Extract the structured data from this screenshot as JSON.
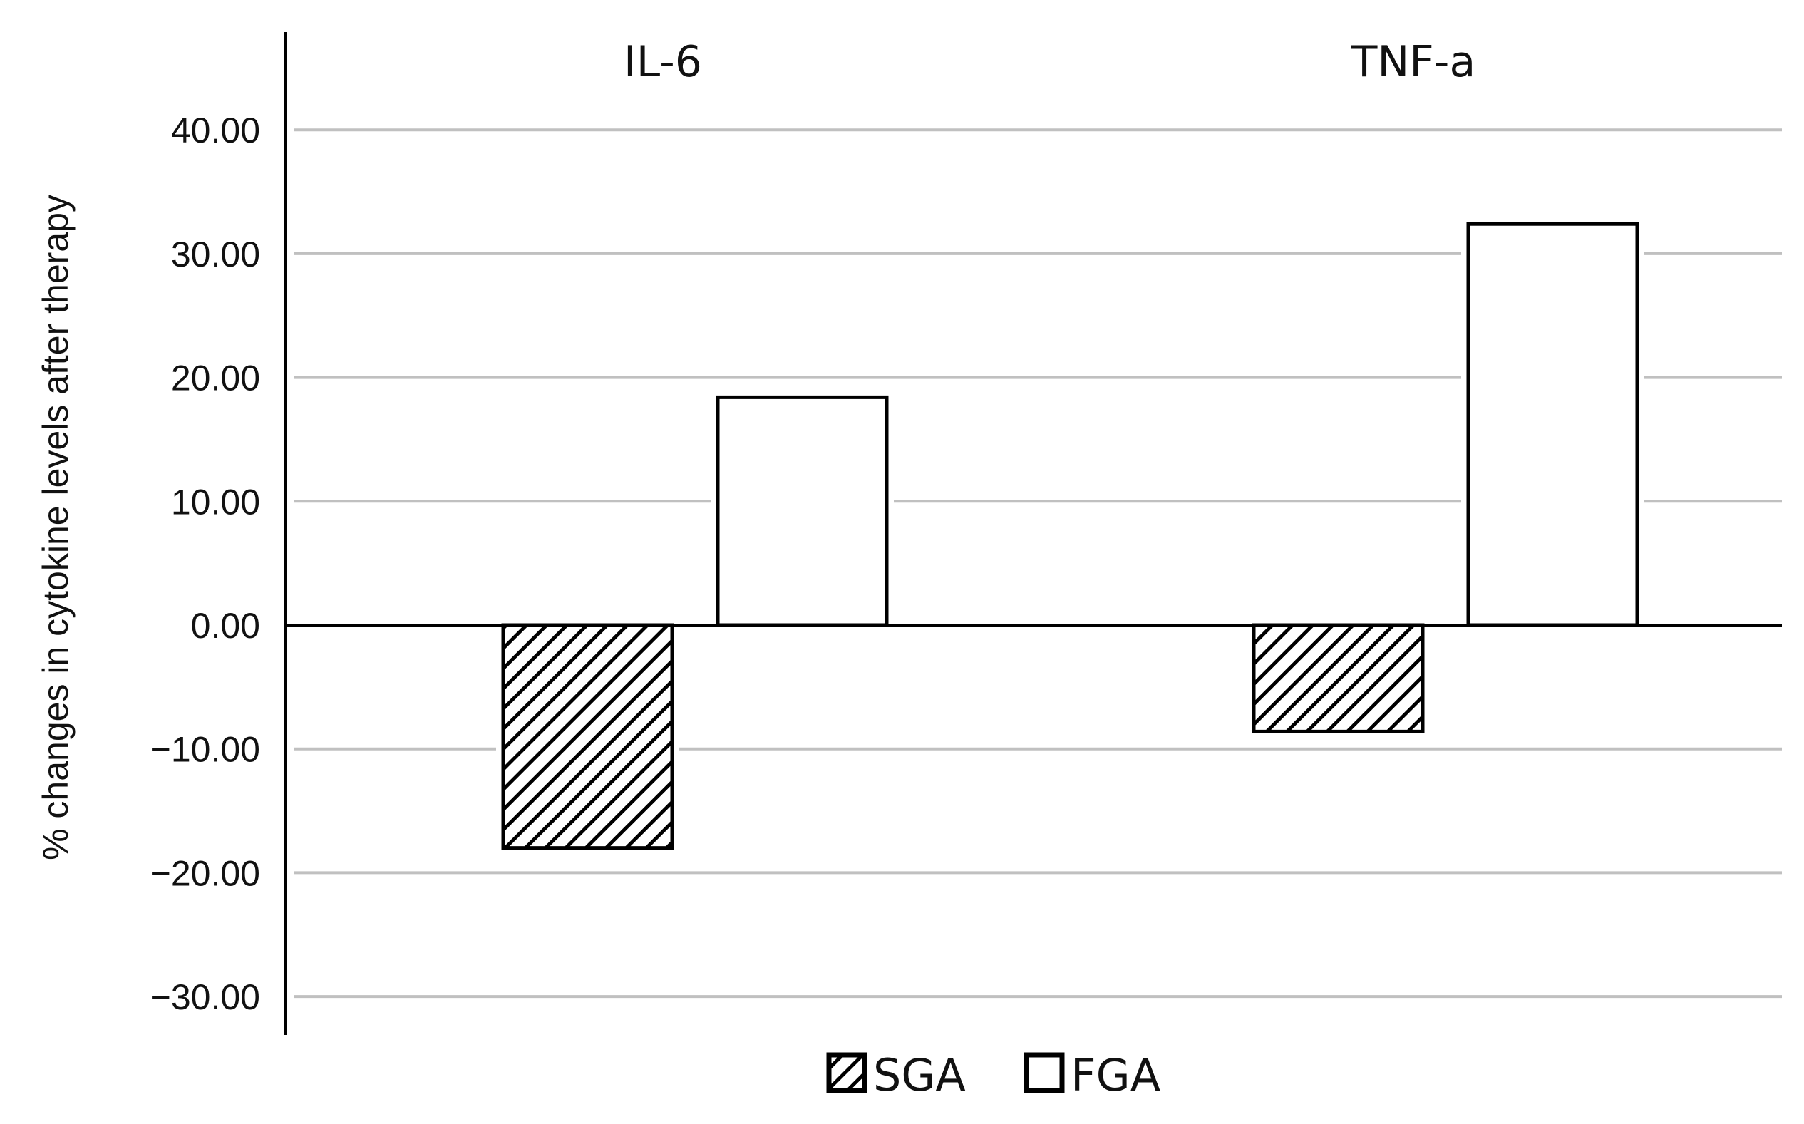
{
  "chart_data": {
    "type": "bar",
    "categories": [
      "IL-6",
      "TNF-a"
    ],
    "series": [
      {
        "name": "SGA",
        "values": [
          -18.0,
          -8.6
        ],
        "pattern": "diagonal-hatch",
        "fill": "#ffffff",
        "stroke": "#000000"
      },
      {
        "name": "FGA",
        "values": [
          18.4,
          32.4
        ],
        "pattern": "none",
        "fill": "#ffffff",
        "stroke": "#000000"
      }
    ],
    "ylabel": "% changes in cytokine levels after therapy",
    "ylim": [
      -33.0,
      40.0
    ],
    "yticks": [
      40,
      30,
      20,
      10,
      0,
      -10,
      -20,
      -30
    ],
    "ytick_labels": [
      "40.00",
      "30.00",
      "20.00",
      "10.00",
      "0.00",
      "−10.00",
      "−20.00",
      "−30.00"
    ],
    "grid": true,
    "grid_color": "#c0c0c0",
    "category_label_position": "top",
    "legend_position": "bottom-center"
  }
}
